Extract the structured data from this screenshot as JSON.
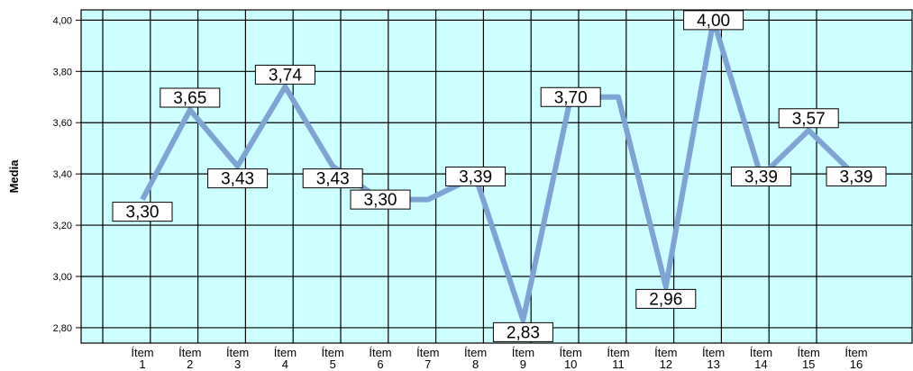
{
  "chart_data": {
    "type": "line",
    "categories": [
      "Ítem 1",
      "Ítem 2",
      "Ítem 3",
      "Ítem 4",
      "Ítem 5",
      "Ítem 6",
      "Ítem 7",
      "Ítem 8",
      "Ítem 9",
      "Ítem 10",
      "Ítem 11",
      "Ítem 12",
      "Ítem 13",
      "Ítem 14",
      "Ítem 15",
      "Ítem 16"
    ],
    "category_lines": [
      [
        "Ítem",
        "1"
      ],
      [
        "Ítem",
        "2"
      ],
      [
        "Ítem",
        "3"
      ],
      [
        "Ítem",
        "4"
      ],
      [
        "Ítem",
        "5"
      ],
      [
        "Ítem",
        "6"
      ],
      [
        "Ítem",
        "7"
      ],
      [
        "Ítem",
        "8"
      ],
      [
        "Ítem",
        "9"
      ],
      [
        "Ítem",
        "10"
      ],
      [
        "Ítem",
        "11"
      ],
      [
        "Ítem",
        "12"
      ],
      [
        "Ítem",
        "13"
      ],
      [
        "Ítem",
        "14"
      ],
      [
        "Ítem",
        "15"
      ],
      [
        "Ítem",
        "16"
      ]
    ],
    "values": [
      3.3,
      3.65,
      3.43,
      3.74,
      3.43,
      3.3,
      3.3,
      3.39,
      2.83,
      3.7,
      3.7,
      2.96,
      4.0,
      3.39,
      3.57,
      3.39
    ],
    "labels": [
      {
        "index": 0,
        "text": "3,30",
        "place": "below"
      },
      {
        "index": 1,
        "text": "3,65",
        "place": "above"
      },
      {
        "index": 2,
        "text": "3,43",
        "place": "below"
      },
      {
        "index": 3,
        "text": "3,74",
        "place": "above"
      },
      {
        "index": 4,
        "text": "3,43",
        "place": "below"
      },
      {
        "index": 5,
        "text": "3,30",
        "place": "center"
      },
      {
        "index": 7,
        "text": "3,39",
        "place": "center"
      },
      {
        "index": 8,
        "text": "2,83",
        "place": "below"
      },
      {
        "index": 9,
        "text": "3,70",
        "place": "center"
      },
      {
        "index": 11,
        "text": "2,96",
        "place": "below"
      },
      {
        "index": 12,
        "text": "4,00",
        "place": "center"
      },
      {
        "index": 13,
        "text": "3,39",
        "place": "center"
      },
      {
        "index": 14,
        "text": "3,57",
        "place": "above"
      },
      {
        "index": 15,
        "text": "3,39",
        "place": "center"
      }
    ],
    "ylabel": "Media",
    "xlabel": "",
    "title": "",
    "ylim": [
      2.74,
      4.04
    ],
    "yticks": [
      2.8,
      3.0,
      3.2,
      3.4,
      3.6,
      3.8,
      4.0
    ],
    "ytick_labels": [
      "2,80",
      "3,00",
      "3,20",
      "3,40",
      "3,60",
      "3,80",
      "4,00"
    ],
    "grid": true,
    "colors": {
      "line": "#7ea4d6",
      "plot_background": "#ccffff",
      "grid": "#000000",
      "label_box": "#ffffff"
    }
  }
}
